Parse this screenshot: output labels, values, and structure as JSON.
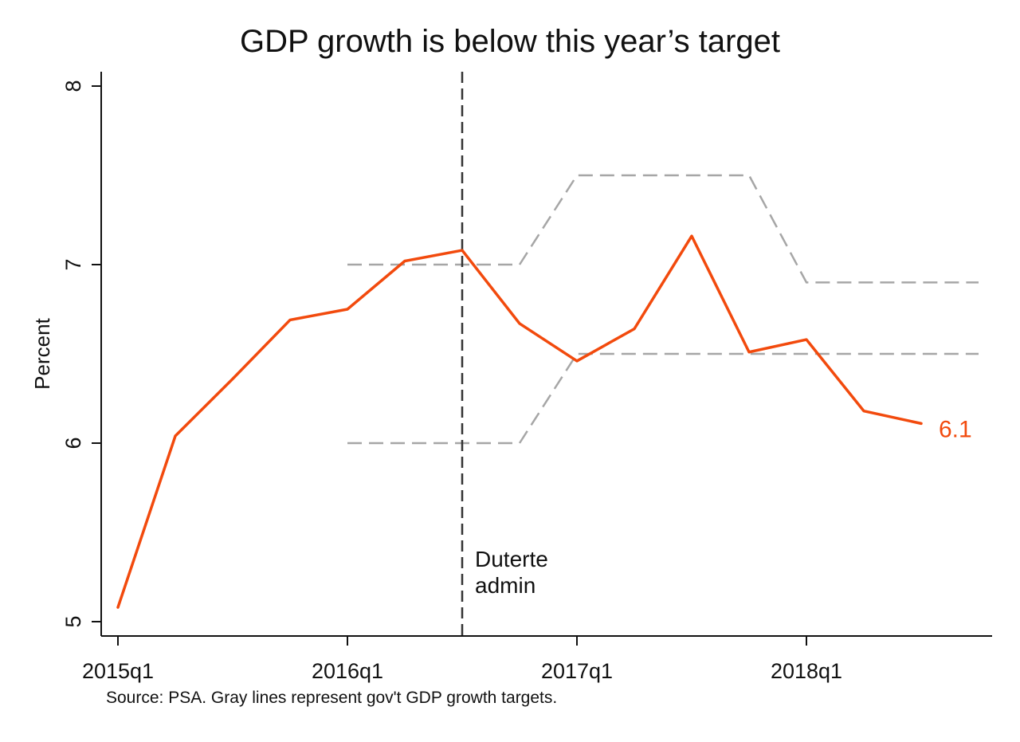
{
  "title": "GDP growth is below this year’s target",
  "source_note": "Source: PSA. Gray lines represent gov't GDP growth targets.",
  "end_label": "6.1",
  "vline_label_lines": [
    "Duterte",
    "admin"
  ],
  "colors": {
    "series": "#f24a0d",
    "target": "#a6a6a6",
    "vline": "#333333",
    "axis": "#111111"
  },
  "chart_data": {
    "type": "line",
    "title": "GDP growth is below this year’s target",
    "ylabel": "Percent",
    "xlabel": "",
    "ylim": [
      5,
      8
    ],
    "xlim": [
      "2015q1",
      "2018q4"
    ],
    "x_ticks": [
      "2015q1",
      "2016q1",
      "2017q1",
      "2018q1"
    ],
    "y_ticks": [
      5,
      6,
      7,
      8
    ],
    "grid": false,
    "legend": "none",
    "series": [
      {
        "x": [
          "2015q1",
          "2015q2",
          "2015q3",
          "2015q4",
          "2016q1",
          "2016q2",
          "2016q3",
          "2016q4",
          "2017q1",
          "2017q2",
          "2017q3",
          "2017q4",
          "2018q1",
          "2018q2",
          "2018q3"
        ],
        "values": [
          5.08,
          6.04,
          6.36,
          6.69,
          6.75,
          7.02,
          7.08,
          6.67,
          6.46,
          6.64,
          7.16,
          6.51,
          6.58,
          6.18,
          6.11
        ]
      },
      {
        "style": "dashed",
        "x": [
          "2016q1",
          "2016q4",
          "2017q1",
          "2017q4",
          "2018q1",
          "2018q4"
        ],
        "values": [
          7.0,
          7.0,
          7.5,
          7.5,
          6.9,
          6.9
        ]
      },
      {
        "style": "dashed",
        "x": [
          "2016q1",
          "2016q4",
          "2017q1",
          "2017q4",
          "2018q1",
          "2018q4"
        ],
        "values": [
          6.0,
          6.0,
          6.5,
          6.5,
          6.5,
          6.5
        ]
      }
    ],
    "vlines": [
      {
        "x": "2016q3",
        "label": "Duterte admin",
        "style": "dashed"
      }
    ]
  }
}
